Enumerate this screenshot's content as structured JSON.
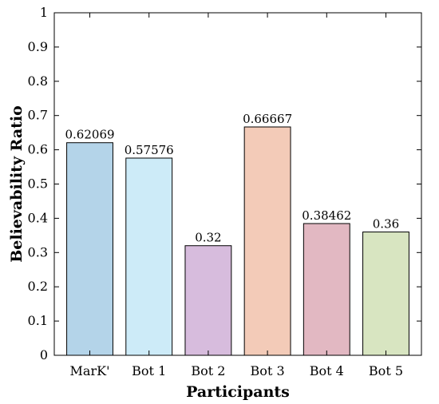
{
  "chart_data": {
    "type": "bar",
    "title": "",
    "xlabel": "Participants",
    "ylabel": "Believability Ratio",
    "categories": [
      "MarK'",
      "Bot 1",
      "Bot 2",
      "Bot 3",
      "Bot 4",
      "Bot 5"
    ],
    "values": [
      0.62069,
      0.57576,
      0.32,
      0.66667,
      0.38462,
      0.36
    ],
    "value_labels": [
      "0.62069",
      "0.57576",
      "0.32",
      "0.66667",
      "0.38462",
      "0.36"
    ],
    "colors": [
      "#b4d4e9",
      "#cdebf8",
      "#d7bcdd",
      "#f3cbb8",
      "#e2b8c2",
      "#d8e5c1"
    ],
    "ylim": [
      0,
      1
    ],
    "yticks": [
      0,
      0.1,
      0.2,
      0.3,
      0.4,
      0.5,
      0.6,
      0.7,
      0.8,
      0.9,
      1
    ],
    "ytick_labels": [
      "0",
      "0.1",
      "0.2",
      "0.3",
      "0.4",
      "0.5",
      "0.6",
      "0.7",
      "0.8",
      "0.9",
      "1"
    ],
    "grid": false,
    "legend": "none"
  }
}
